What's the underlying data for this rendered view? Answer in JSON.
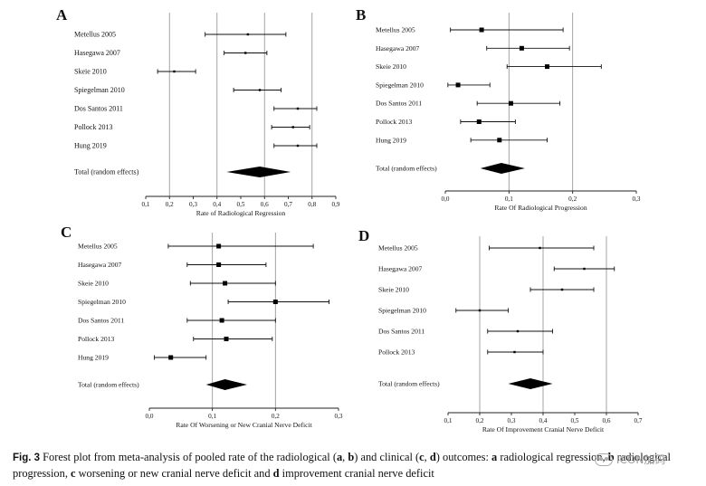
{
  "chart_data": [
    {
      "type": "forest",
      "panel": "A",
      "xlabel": "Rate of Radiological Regression",
      "xlim": [
        0.1,
        0.9
      ],
      "ticks": [
        0.1,
        0.2,
        0.3,
        0.4,
        0.5,
        0.6,
        0.7,
        0.8,
        0.9
      ],
      "tick_labels": [
        "0,1",
        "0,2",
        "0,3",
        "0,4",
        "0,5",
        "0,6",
        "0,7",
        "0,8",
        "0,9"
      ],
      "grid_x": [
        0.2,
        0.4,
        0.6,
        0.8
      ],
      "studies": [
        {
          "label": "Metellus 2005",
          "est": 0.53,
          "lo": 0.35,
          "hi": 0.69
        },
        {
          "label": "Hasegawa 2007",
          "est": 0.52,
          "lo": 0.43,
          "hi": 0.61
        },
        {
          "label": "Skeie 2010",
          "est": 0.22,
          "lo": 0.15,
          "hi": 0.31
        },
        {
          "label": "Spiegelman 2010",
          "est": 0.58,
          "lo": 0.47,
          "hi": 0.67
        },
        {
          "label": "Dos Santos 2011",
          "est": 0.74,
          "lo": 0.64,
          "hi": 0.82
        },
        {
          "label": "Pollock 2013",
          "est": 0.72,
          "lo": 0.63,
          "hi": 0.79
        },
        {
          "label": "Hung 2019",
          "est": 0.74,
          "lo": 0.64,
          "hi": 0.82
        }
      ],
      "pooled": {
        "label": "Total (random effects)",
        "est": 0.58,
        "lo": 0.44,
        "hi": 0.71
      }
    },
    {
      "type": "forest",
      "panel": "B",
      "xlabel": "Rate Of Radiological Progression",
      "xlim": [
        0.0,
        0.3
      ],
      "ticks": [
        0.0,
        0.1,
        0.2,
        0.3
      ],
      "tick_labels": [
        "0,0",
        "0,1",
        "0,2",
        "0,3"
      ],
      "grid_x": [
        0.1,
        0.2
      ],
      "studies": [
        {
          "label": "Metellus 2005",
          "est": 0.057,
          "lo": 0.008,
          "hi": 0.185
        },
        {
          "label": "Hasegawa 2007",
          "est": 0.12,
          "lo": 0.065,
          "hi": 0.195
        },
        {
          "label": "Skeie 2010",
          "est": 0.16,
          "lo": 0.097,
          "hi": 0.245
        },
        {
          "label": "Spiegelman 2010",
          "est": 0.02,
          "lo": 0.004,
          "hi": 0.07
        },
        {
          "label": "Dos Santos 2011",
          "est": 0.103,
          "lo": 0.05,
          "hi": 0.18
        },
        {
          "label": "Pollock 2013",
          "est": 0.053,
          "lo": 0.024,
          "hi": 0.11
        },
        {
          "label": "Hung 2019",
          "est": 0.085,
          "lo": 0.04,
          "hi": 0.16
        }
      ],
      "pooled": {
        "label": "Total (random effects)",
        "est": 0.088,
        "lo": 0.055,
        "hi": 0.125
      }
    },
    {
      "type": "forest",
      "panel": "C",
      "xlabel": "Rate Of Worsening or New Cranial Nerve Deficit",
      "xlim": [
        0.0,
        0.3
      ],
      "ticks": [
        0.0,
        0.1,
        0.2,
        0.3
      ],
      "tick_labels": [
        "0,0",
        "0,1",
        "0,2",
        "0,3"
      ],
      "grid_x": [
        0.1,
        0.2
      ],
      "studies": [
        {
          "label": "Metellus 2005",
          "est": 0.11,
          "lo": 0.03,
          "hi": 0.26
        },
        {
          "label": "Hasegawa 2007",
          "est": 0.11,
          "lo": 0.06,
          "hi": 0.185
        },
        {
          "label": "Skeie 2010",
          "est": 0.12,
          "lo": 0.065,
          "hi": 0.2
        },
        {
          "label": "Spiegelman 2010",
          "est": 0.2,
          "lo": 0.125,
          "hi": 0.285
        },
        {
          "label": "Dos Santos 2011",
          "est": 0.115,
          "lo": 0.06,
          "hi": 0.2
        },
        {
          "label": "Pollock 2013",
          "est": 0.122,
          "lo": 0.07,
          "hi": 0.195
        },
        {
          "label": "Hung 2019",
          "est": 0.034,
          "lo": 0.008,
          "hi": 0.09
        }
      ],
      "pooled": {
        "label": "Total (random effects)",
        "est": 0.12,
        "lo": 0.09,
        "hi": 0.155
      }
    },
    {
      "type": "forest",
      "panel": "D",
      "xlabel": "Rate Of Improvement Cranial Nerve Deficit",
      "xlim": [
        0.1,
        0.7
      ],
      "ticks": [
        0.1,
        0.2,
        0.3,
        0.4,
        0.5,
        0.6,
        0.7
      ],
      "tick_labels": [
        "0,1",
        "0,2",
        "0,3",
        "0,4",
        "0,5",
        "0,6",
        "0,7"
      ],
      "grid_x": [
        0.2,
        0.4,
        0.6
      ],
      "studies": [
        {
          "label": "Metellus 2005",
          "est": 0.39,
          "lo": 0.23,
          "hi": 0.56
        },
        {
          "label": "Hasegawa 2007",
          "est": 0.53,
          "lo": 0.435,
          "hi": 0.625
        },
        {
          "label": "Skeie 2010",
          "est": 0.46,
          "lo": 0.36,
          "hi": 0.56
        },
        {
          "label": "Spiegelman 2010",
          "est": 0.2,
          "lo": 0.125,
          "hi": 0.29
        },
        {
          "label": "Dos Santos 2011",
          "est": 0.32,
          "lo": 0.225,
          "hi": 0.43
        },
        {
          "label": "Pollock 2013",
          "est": 0.31,
          "lo": 0.225,
          "hi": 0.4
        }
      ],
      "pooled": {
        "label": "Total (random effects)",
        "est": 0.36,
        "lo": 0.29,
        "hi": 0.43
      }
    }
  ],
  "caption": {
    "fig_label": "Fig. 3",
    "text_1": "  Forest plot from meta-analysis of pooled rate of the radiological (",
    "a": "a",
    "sep1": ", ",
    "b": "b",
    "text_2": ") and clinical (",
    "c": "c",
    "sep2": ", ",
    "d": "d",
    "text_3": ") outcomes: ",
    "a2": "a",
    "text_4": " radiological regression, ",
    "b2": "b",
    "text_5": " radiological progression, ",
    "c2": "c",
    "text_6": " worsening or new cranial nerve deficit and ",
    "d2": "d",
    "text_7": " improvement cranial nerve deficit"
  },
  "watermark": {
    "text": "ICON加码"
  }
}
